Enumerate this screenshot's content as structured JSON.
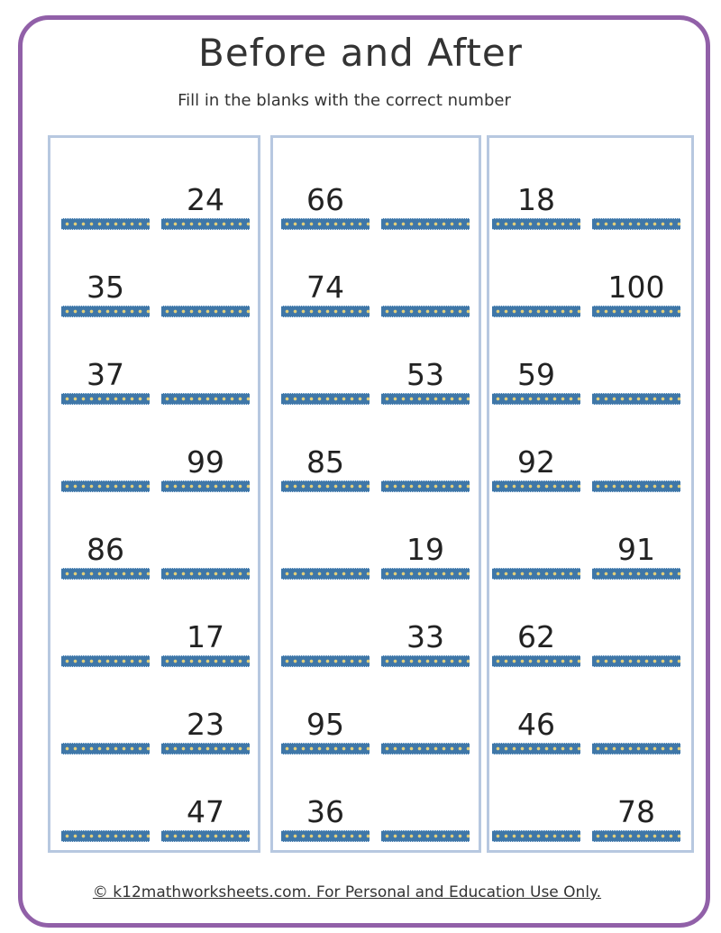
{
  "title": "Before and After",
  "subtitle": "Fill in the blanks with the correct number",
  "columns": [
    [
      [
        "",
        "24"
      ],
      [
        "35",
        ""
      ],
      [
        "37",
        ""
      ],
      [
        "",
        "99"
      ],
      [
        "86",
        ""
      ],
      [
        "",
        "17"
      ],
      [
        "",
        "23"
      ],
      [
        "",
        "47"
      ]
    ],
    [
      [
        "66",
        ""
      ],
      [
        "74",
        ""
      ],
      [
        "",
        "53"
      ],
      [
        "85",
        ""
      ],
      [
        "",
        "19"
      ],
      [
        "",
        "33"
      ],
      [
        "95",
        ""
      ],
      [
        "36",
        ""
      ]
    ],
    [
      [
        "18",
        ""
      ],
      [
        "",
        "100"
      ],
      [
        "59",
        ""
      ],
      [
        "92",
        ""
      ],
      [
        "",
        "91"
      ],
      [
        "62",
        ""
      ],
      [
        "46",
        ""
      ],
      [
        "",
        "78"
      ]
    ]
  ],
  "footer": "© k12mathworksheets.com. For Personal and Education Use Only.",
  "colors": {
    "frame": "#9160a8",
    "column_border": "#b7c8e0",
    "blank_bar": "#3f77a8"
  }
}
